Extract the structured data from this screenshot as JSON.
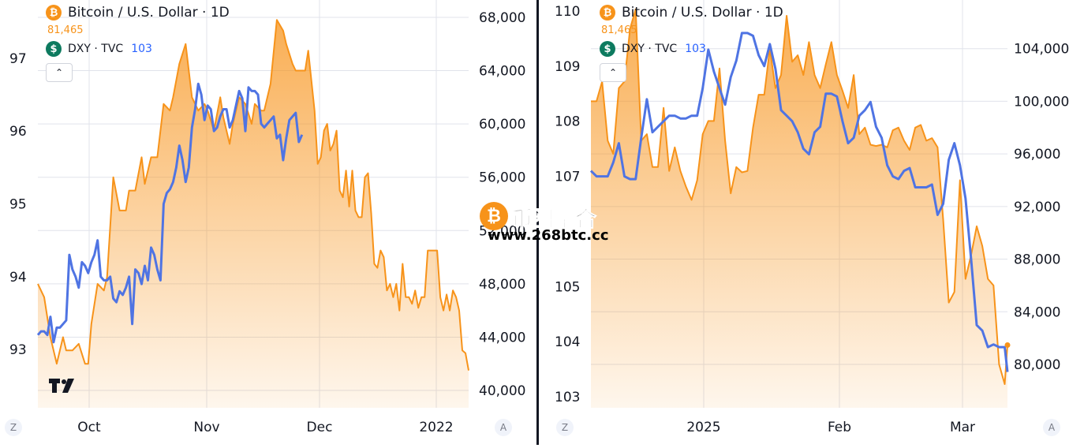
{
  "watermark": {
    "name": "币圈聚合",
    "url": "www.268btc.cc"
  },
  "colors": {
    "btc": "#f7931a",
    "dxy": "#4f74e3",
    "grid": "#e0e3eb",
    "text": "#131722",
    "overlap": "#7f7d9c"
  },
  "chart_data": [
    {
      "type": "line",
      "legend": {
        "title": "Bitcoin / U.S. Dollar · 1D",
        "btc_price": "81,465",
        "dxy_label": "DXY · TVC",
        "dxy_value": "103"
      },
      "x_ticks": [
        "Oct",
        "Nov",
        "Dec",
        "2022"
      ],
      "scale_buttons": {
        "left": "Z",
        "right": "A"
      },
      "left_axis": {
        "ticks": [
          "93",
          "94",
          "95",
          "96",
          "97"
        ],
        "range": [
          92.2,
          97.8
        ]
      },
      "right_axis": {
        "ticks": [
          "40,000",
          "44,000",
          "48,000",
          "52,000",
          "56,000",
          "60,000",
          "64,000",
          "68,000"
        ],
        "range": [
          38700,
          69300
        ]
      },
      "series": [
        {
          "name": "Bitcoin / U.S. Dollar",
          "axis": "right",
          "values": [
            48000,
            47000,
            44000,
            42000,
            44000,
            43000,
            43000,
            43500,
            42000,
            42000,
            45000,
            48000,
            47500,
            48500,
            56000,
            53500,
            53500,
            55000,
            55000,
            57500,
            55500,
            57500,
            57500,
            61500,
            61000,
            62000,
            64500,
            66000,
            62000,
            61000,
            61500,
            61000,
            59500,
            62000,
            60500,
            58500,
            60000,
            62000,
            61500,
            60000,
            61500,
            61000,
            61000,
            63000,
            67800,
            67000,
            66000,
            64500,
            64000,
            64000,
            64000,
            64000,
            65500,
            61000,
            57000,
            57500,
            59500,
            60000,
            58000,
            58500,
            59500,
            55000,
            54500,
            56500,
            53800,
            56500,
            53500,
            53000,
            53000,
            56000,
            56300,
            53300,
            49500,
            49200,
            50500,
            50000,
            47500,
            48000,
            47000,
            48000,
            46000,
            49500,
            47000,
            47000,
            46500,
            47500,
            46200,
            47000,
            47000,
            50500,
            50500,
            50500,
            50500,
            47000,
            46000,
            47200,
            46000,
            47500,
            47000,
            46000,
            43000,
            42800,
            41500
          ],
          "x": [
            0,
            2,
            4,
            6,
            8,
            9,
            11,
            13,
            15,
            16,
            17,
            19,
            21,
            22,
            24,
            26,
            28,
            29,
            31,
            33,
            34,
            36,
            38,
            40,
            42,
            43,
            45,
            47,
            49,
            51,
            53,
            54,
            56,
            58,
            59,
            61,
            62,
            64,
            66,
            68,
            69,
            71,
            72,
            74,
            76,
            78,
            79,
            81,
            82,
            83,
            84,
            85,
            86,
            88,
            89,
            90,
            91,
            92,
            93,
            94,
            95,
            96,
            97,
            98,
            99,
            100,
            101,
            102,
            103,
            104,
            105,
            106,
            107,
            108,
            109,
            110,
            111,
            112,
            113,
            114,
            115,
            116,
            117,
            118,
            119,
            120,
            121,
            122,
            123,
            124,
            125,
            126,
            127,
            128,
            129,
            130,
            131,
            132,
            133,
            134,
            135,
            136,
            137
          ]
        },
        {
          "name": "DXY · TVC",
          "axis": "left",
          "values": [
            93.2,
            93.25,
            93.25,
            93.2,
            93.45,
            93.1,
            93.3,
            93.3,
            93.35,
            93.4,
            94.3,
            94.1,
            94.0,
            93.85,
            94.2,
            94.15,
            94.05,
            94.2,
            94.3,
            94.5,
            94.0,
            93.95,
            93.95,
            94.0,
            93.7,
            93.65,
            93.8,
            93.75,
            93.85,
            94.0,
            93.35,
            94.1,
            94.05,
            93.9,
            94.15,
            93.95,
            94.4,
            94.3,
            94.1,
            93.95,
            95.0,
            95.15,
            95.2,
            95.3,
            95.5,
            95.8,
            95.6,
            95.3,
            95.5,
            96.05,
            96.3,
            96.65,
            96.5,
            96.15,
            96.35,
            96.3,
            96.0,
            96.05,
            96.2,
            96.3,
            96.3,
            96.05,
            96.15,
            96.35,
            96.55,
            96.45,
            96.0,
            96.6,
            96.55,
            96.55,
            96.5,
            96.1,
            96.05,
            96.1,
            96.15,
            96.2,
            95.9,
            95.95,
            95.6,
            95.9,
            96.15,
            96.2,
            96.25,
            95.85,
            95.95
          ],
          "x": [
            0,
            1,
            2,
            3,
            4,
            5,
            6,
            7,
            8,
            9,
            10,
            11,
            12,
            13,
            14,
            15,
            16,
            17,
            18,
            19,
            20,
            21,
            22,
            23,
            24,
            25,
            26,
            27,
            28,
            29,
            30,
            31,
            32,
            33,
            34,
            35,
            36,
            37,
            38,
            39,
            40,
            41,
            42,
            43,
            44,
            45,
            46,
            47,
            48,
            49,
            50,
            51,
            52,
            53,
            54,
            55,
            56,
            57,
            58,
            59,
            60,
            61,
            62,
            63,
            64,
            65,
            66,
            67,
            68,
            69,
            70,
            71,
            72,
            73,
            74,
            75,
            76,
            77,
            78,
            79,
            80,
            81,
            82,
            83,
            84
          ]
        }
      ]
    },
    {
      "type": "line",
      "legend": {
        "title": "Bitcoin / U.S. Dollar · 1D",
        "btc_price": "81,465",
        "dxy_label": "DXY · TVC",
        "dxy_value": "103"
      },
      "x_ticks": [
        "2025",
        "Feb",
        "Mar"
      ],
      "scale_buttons": {
        "left": "Z",
        "right": "A"
      },
      "left_axis": {
        "ticks": [
          "103",
          "104",
          "105",
          "107",
          "108",
          "109",
          "110"
        ],
        "range": [
          102.8,
          110.2
        ]
      },
      "right_axis": {
        "ticks": [
          "80,000",
          "84,000",
          "88,000",
          "92,000",
          "96,000",
          "100,000",
          "104,000"
        ],
        "range": [
          76700,
          107700
        ]
      },
      "series": [
        {
          "name": "Bitcoin / U.S. Dollar",
          "axis": "right",
          "values": [
            100000,
            100000,
            101500,
            97000,
            96000,
            101000,
            101500,
            105500,
            107000,
            97000,
            97500,
            95000,
            95000,
            99500,
            94700,
            96500,
            94700,
            93500,
            92500,
            94000,
            97500,
            98500,
            98500,
            102500,
            97000,
            93000,
            95000,
            94600,
            94700,
            98000,
            100500,
            100500,
            104000,
            101000,
            102000,
            106500,
            103000,
            103500,
            102000,
            104500,
            102000,
            101000,
            102800,
            104500,
            102000,
            100800,
            99500,
            102000,
            97500,
            98000,
            96700,
            96600,
            96700,
            96500,
            97800,
            98000,
            97000,
            96300,
            98000,
            98200,
            97000,
            97200,
            96500,
            91000,
            84700,
            85500,
            94000,
            86500,
            88300,
            90500,
            89000,
            86500,
            86000,
            80000,
            78500,
            81465
          ],
          "x": [
            0,
            2,
            4,
            6,
            8,
            10,
            12,
            14,
            16,
            18,
            20,
            22,
            24,
            26,
            28,
            30,
            32,
            34,
            36,
            38,
            40,
            42,
            44,
            46,
            48,
            50,
            52,
            54,
            56,
            58,
            60,
            62,
            64,
            66,
            68,
            70,
            72,
            74,
            76,
            78,
            80,
            82,
            84,
            86,
            88,
            90,
            92,
            94,
            96,
            98,
            100,
            102,
            104,
            106,
            108,
            110,
            112,
            114,
            116,
            118,
            120,
            122,
            124,
            126,
            128,
            130,
            132,
            134,
            136,
            138,
            140,
            142,
            144,
            146,
            148,
            149
          ]
        },
        {
          "name": "DXY · TVC",
          "axis": "left",
          "values": [
            107.1,
            107.0,
            107.0,
            107.0,
            107.25,
            107.6,
            107.0,
            106.95,
            106.95,
            107.7,
            108.4,
            107.8,
            107.9,
            108.0,
            108.1,
            108.1,
            108.05,
            108.05,
            108.1,
            108.1,
            108.6,
            109.3,
            108.9,
            108.6,
            108.3,
            108.8,
            109.1,
            109.6,
            109.6,
            109.55,
            109.2,
            109.0,
            109.4,
            108.95,
            108.2,
            108.1,
            108.0,
            107.8,
            107.5,
            107.4,
            107.8,
            107.9,
            108.5,
            108.5,
            108.45,
            108.0,
            107.6,
            107.7,
            108.1,
            108.2,
            108.35,
            107.9,
            107.7,
            107.2,
            107.0,
            106.95,
            107.1,
            107.15,
            106.8,
            106.8,
            106.8,
            106.85,
            106.3,
            106.5,
            107.3,
            107.6,
            107.2,
            106.6,
            105.5,
            104.3,
            104.2,
            103.9,
            103.95,
            103.9,
            103.9,
            103.45
          ],
          "x": [
            0,
            2,
            4,
            6,
            8,
            10,
            12,
            14,
            16,
            18,
            20,
            22,
            24,
            26,
            28,
            30,
            32,
            34,
            36,
            38,
            40,
            42,
            44,
            46,
            48,
            50,
            52,
            54,
            56,
            58,
            60,
            62,
            64,
            66,
            68,
            70,
            72,
            74,
            76,
            78,
            80,
            82,
            84,
            86,
            88,
            90,
            92,
            94,
            96,
            98,
            100,
            102,
            104,
            106,
            108,
            110,
            112,
            114,
            116,
            118,
            120,
            122,
            124,
            126,
            128,
            130,
            132,
            134,
            136,
            138,
            140,
            142,
            144,
            146,
            148,
            149
          ]
        }
      ]
    }
  ]
}
